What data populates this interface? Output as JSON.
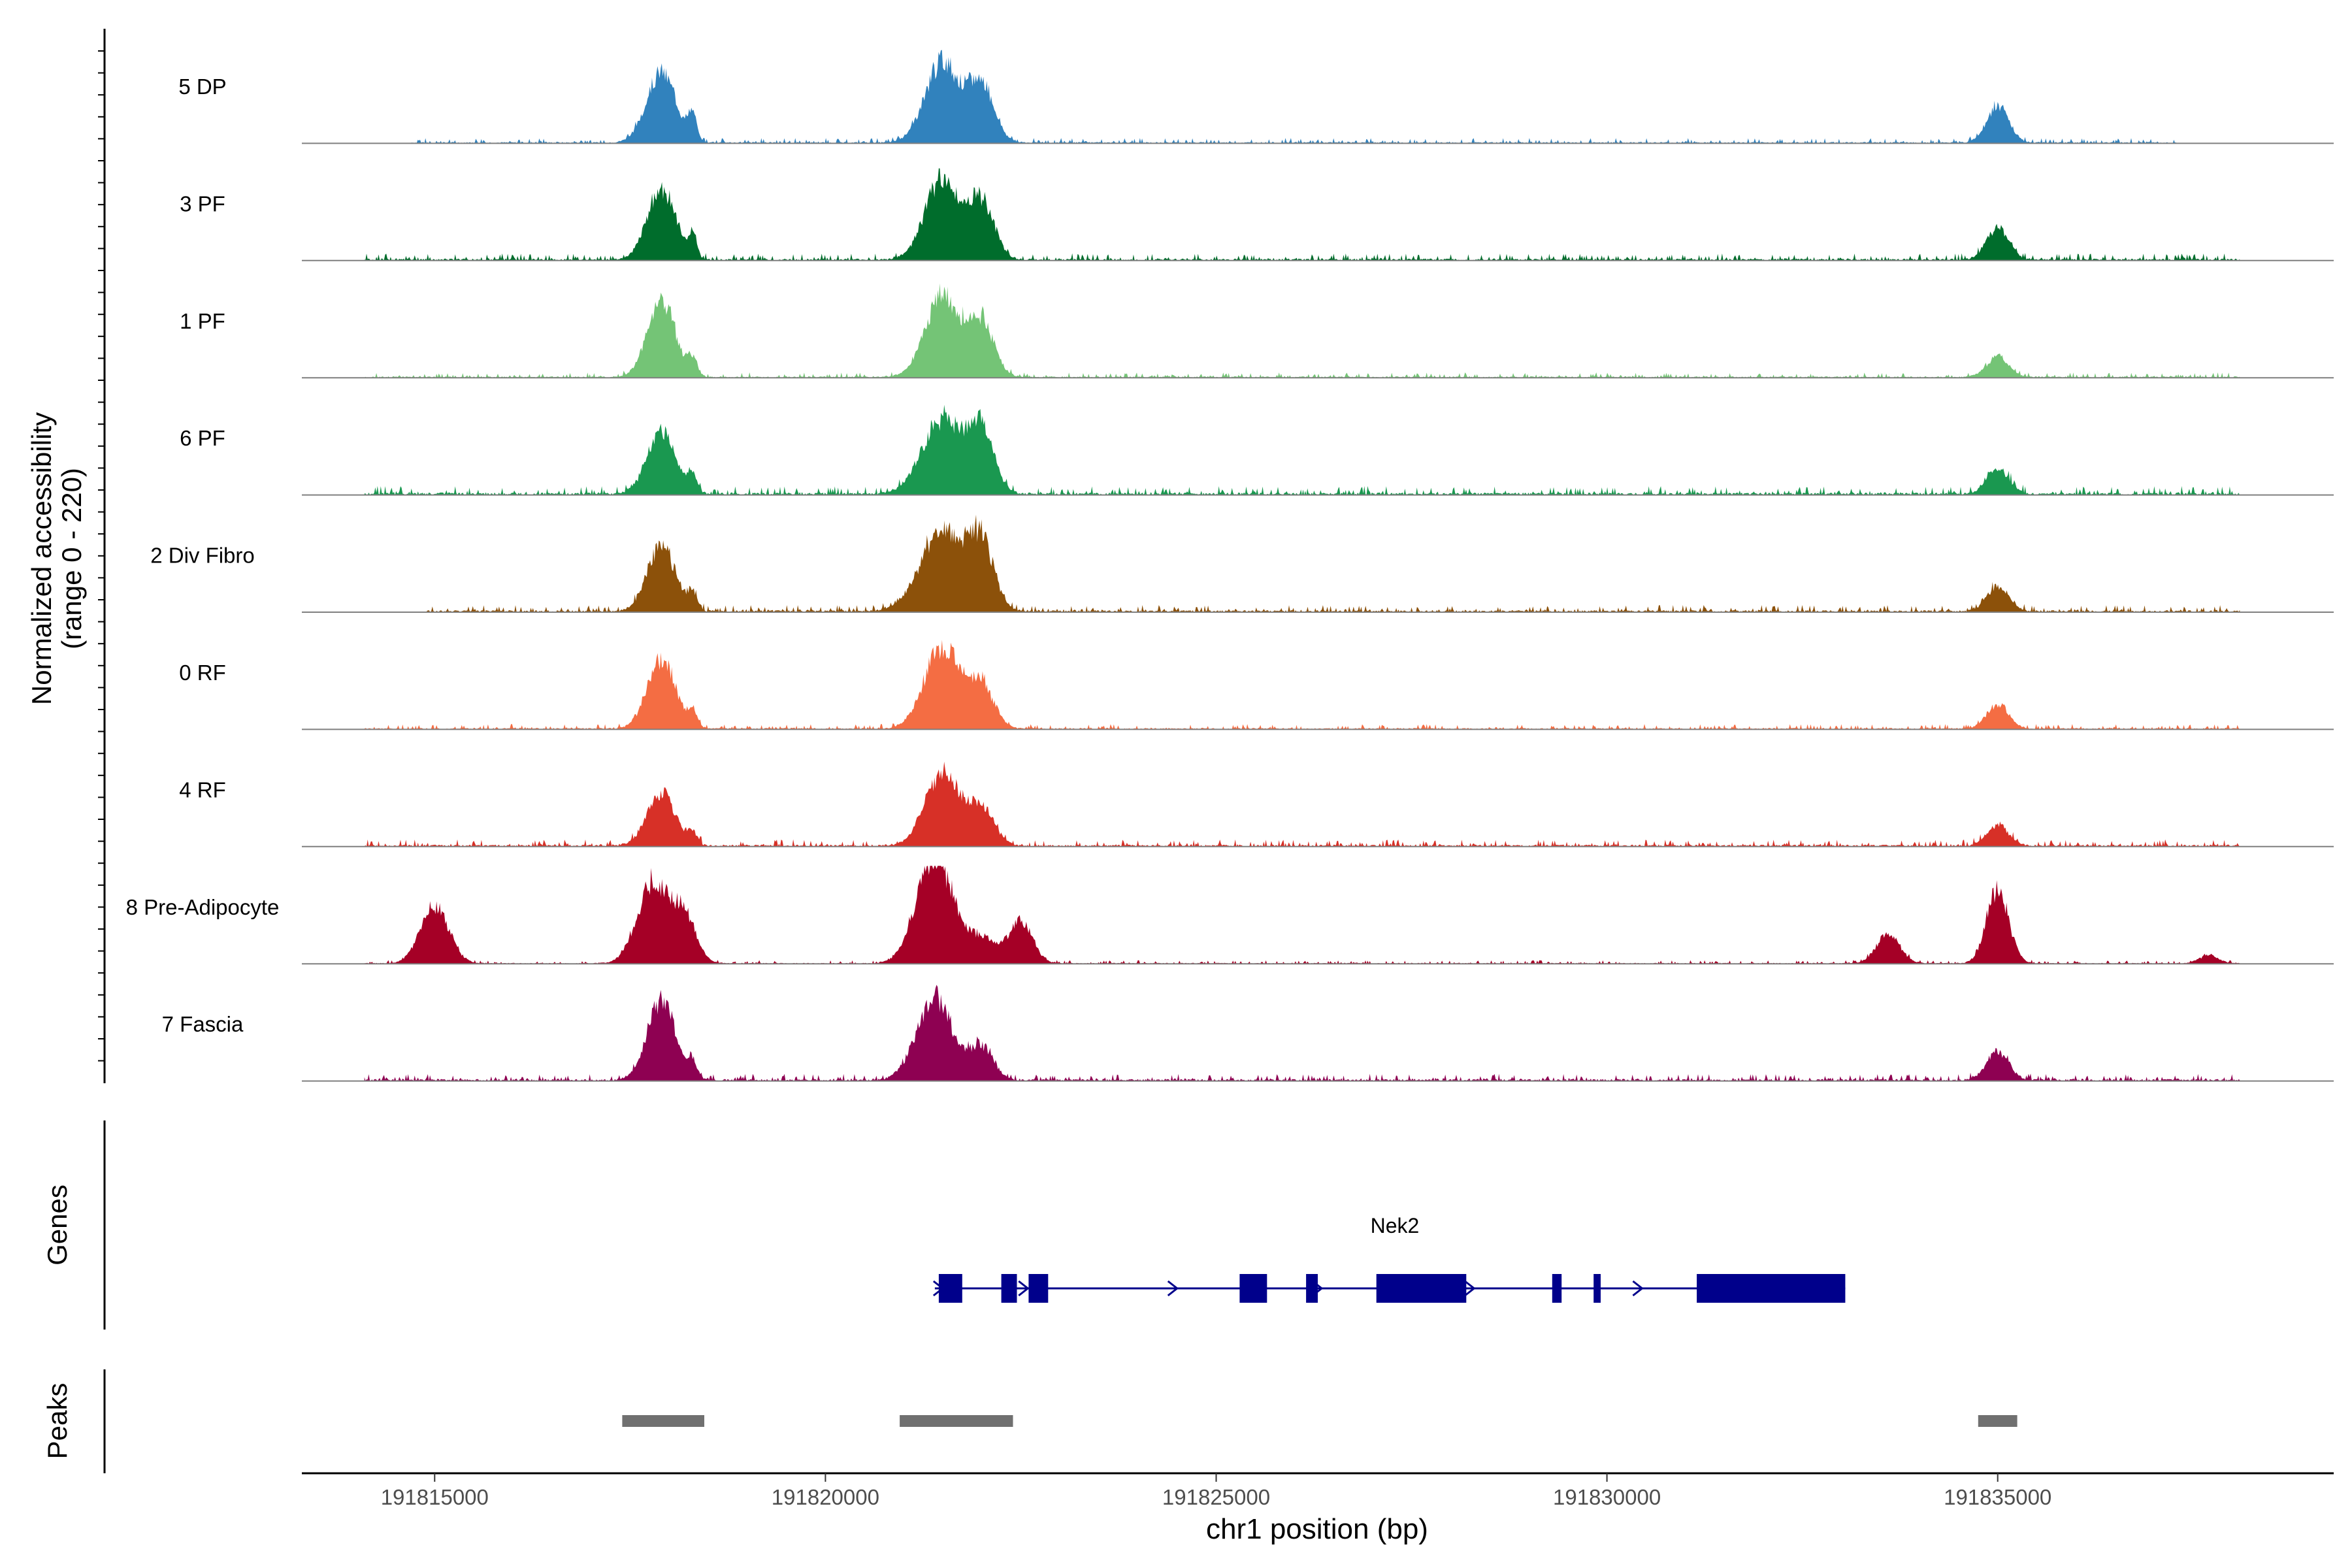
{
  "chart_data": {
    "type": "area",
    "title": "",
    "ylabel_line1": "Normalized accessibility",
    "ylabel_line2": "(range 0 - 220)",
    "xlabel": "chr1 position (bp)",
    "y_range": [
      0,
      220
    ],
    "x_range": [
      191813300,
      191839300
    ],
    "x_ticks": [
      191815000,
      191820000,
      191825000,
      191830000,
      191835000
    ],
    "x_tick_labels": [
      "191815000",
      "191820000",
      "191825000",
      "191830000",
      "191835000"
    ],
    "tracks": [
      {
        "name": "5 DP",
        "color": "#3182BD",
        "start": 191814700,
        "end": 191837300,
        "base": 0.03,
        "peaks": [
          [
            191817900,
            190,
            0.85
          ],
          [
            191818300,
            50,
            0.3
          ],
          [
            191821500,
            220,
            1.0
          ],
          [
            191822000,
            160,
            0.7
          ],
          [
            191835000,
            140,
            0.45
          ]
        ]
      },
      {
        "name": "3 PF",
        "color": "#006D2C",
        "start": 191814100,
        "end": 191838100,
        "base": 0.04,
        "peaks": [
          [
            191817900,
            180,
            0.85
          ],
          [
            191818300,
            50,
            0.3
          ],
          [
            191821500,
            220,
            1.0
          ],
          [
            191822000,
            160,
            0.7
          ],
          [
            191835000,
            140,
            0.4
          ]
        ]
      },
      {
        "name": "1 PF",
        "color": "#74C476",
        "start": 191814100,
        "end": 191838100,
        "base": 0.03,
        "peaks": [
          [
            191817900,
            180,
            0.9
          ],
          [
            191818300,
            60,
            0.2
          ],
          [
            191821500,
            220,
            1.0
          ],
          [
            191822000,
            160,
            0.65
          ],
          [
            191835000,
            140,
            0.25
          ]
        ]
      },
      {
        "name": "6 PF",
        "color": "#1A9850",
        "start": 191814100,
        "end": 191838100,
        "base": 0.05,
        "peaks": [
          [
            191817900,
            180,
            0.75
          ],
          [
            191818300,
            60,
            0.2
          ],
          [
            191821500,
            260,
            0.9
          ],
          [
            191822000,
            160,
            0.75
          ],
          [
            191835000,
            140,
            0.3
          ]
        ]
      },
      {
        "name": "2 Div Fibro",
        "color": "#8C510A",
        "start": 191814900,
        "end": 191838100,
        "base": 0.04,
        "peaks": [
          [
            191817900,
            180,
            0.8
          ],
          [
            191818300,
            60,
            0.2
          ],
          [
            191821500,
            280,
            1.0
          ],
          [
            191822000,
            160,
            0.75
          ],
          [
            191835000,
            140,
            0.3
          ]
        ]
      },
      {
        "name": "0 RF",
        "color": "#F46D43",
        "start": 191814100,
        "end": 191838100,
        "base": 0.03,
        "peaks": [
          [
            191817900,
            180,
            0.85
          ],
          [
            191818300,
            60,
            0.2
          ],
          [
            191821500,
            230,
            1.0
          ],
          [
            191822000,
            160,
            0.5
          ],
          [
            191835000,
            140,
            0.3
          ]
        ]
      },
      {
        "name": "4 RF",
        "color": "#D73027",
        "start": 191814100,
        "end": 191838100,
        "base": 0.04,
        "peaks": [
          [
            191817900,
            180,
            0.65
          ],
          [
            191818300,
            60,
            0.15
          ],
          [
            191821500,
            220,
            0.9
          ],
          [
            191822000,
            160,
            0.45
          ],
          [
            191835000,
            140,
            0.25
          ]
        ]
      },
      {
        "name": "8 Pre-Adipocyte",
        "color": "#A50026",
        "start": 191814100,
        "end": 191838100,
        "base": 0.02,
        "peaks": [
          [
            191815000,
            180,
            0.7
          ],
          [
            191817800,
            200,
            1.0
          ],
          [
            191818200,
            150,
            0.55
          ],
          [
            191821400,
            230,
            1.3
          ],
          [
            191822000,
            200,
            0.3
          ],
          [
            191822500,
            150,
            0.5
          ],
          [
            191833600,
            150,
            0.35
          ],
          [
            191835000,
            140,
            0.9
          ],
          [
            191837700,
            120,
            0.1
          ]
        ]
      },
      {
        "name": "7 Fascia",
        "color": "#8E0152",
        "start": 191814100,
        "end": 191838100,
        "base": 0.04,
        "peaks": [
          [
            191817900,
            180,
            0.95
          ],
          [
            191818300,
            60,
            0.2
          ],
          [
            191821400,
            230,
            1.0
          ],
          [
            191822000,
            150,
            0.4
          ],
          [
            191835000,
            140,
            0.35
          ]
        ]
      }
    ],
    "genes_label": "Genes",
    "gene": {
      "name": "Nek2",
      "start": 191821400,
      "end": 191833050,
      "color": "#00008B",
      "exons": [
        [
          191821450,
          191821750
        ],
        [
          191822250,
          191822450
        ],
        [
          191822600,
          191822850
        ],
        [
          191825300,
          191825650
        ],
        [
          191826150,
          191826300
        ],
        [
          191827050,
          191828200
        ],
        [
          191829300,
          191829420
        ],
        [
          191829830,
          191829920
        ],
        [
          191831150,
          191833050
        ]
      ],
      "arrows": [
        191821450,
        191822540,
        191824450,
        191825480,
        191826300,
        191828250,
        191830400
      ]
    },
    "peaks_label": "Peaks",
    "peak_color": "#707070",
    "peak_regions": [
      [
        191817400,
        191818450
      ],
      [
        191820950,
        191822400
      ],
      [
        191834750,
        191835250
      ]
    ]
  }
}
